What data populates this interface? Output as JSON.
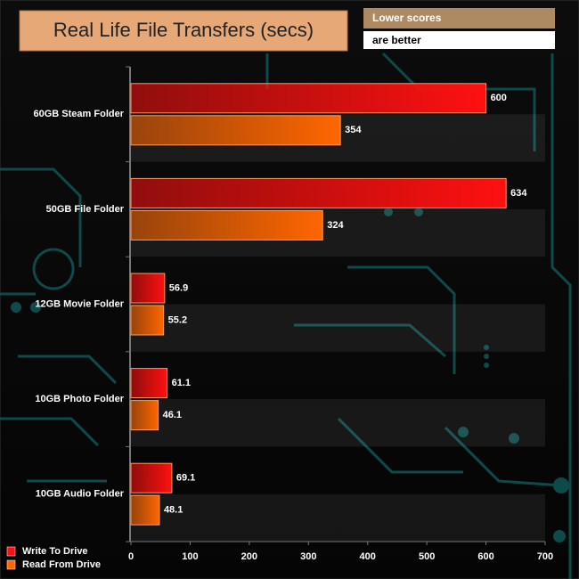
{
  "chart_data": {
    "type": "hbar",
    "title": "Real Life File Transfers (secs)",
    "annotation": [
      "Lower scores",
      "are better"
    ],
    "categories": [
      "60GB Steam Folder",
      "50GB File Folder",
      "12GB Movie Folder",
      "10GB Photo Folder",
      "10GB Audio Folder"
    ],
    "series": [
      {
        "name": "Write To Drive",
        "color": "#ff1010",
        "values": [
          600,
          634,
          56.9,
          61.1,
          69.1
        ]
      },
      {
        "name": "Read From Drive",
        "color": "#ff6600",
        "values": [
          354,
          324,
          55.2,
          46.1,
          48.1
        ]
      }
    ],
    "xlim": [
      0,
      700
    ],
    "xticks": [
      0,
      100,
      200,
      300,
      400,
      500,
      600,
      700
    ]
  }
}
